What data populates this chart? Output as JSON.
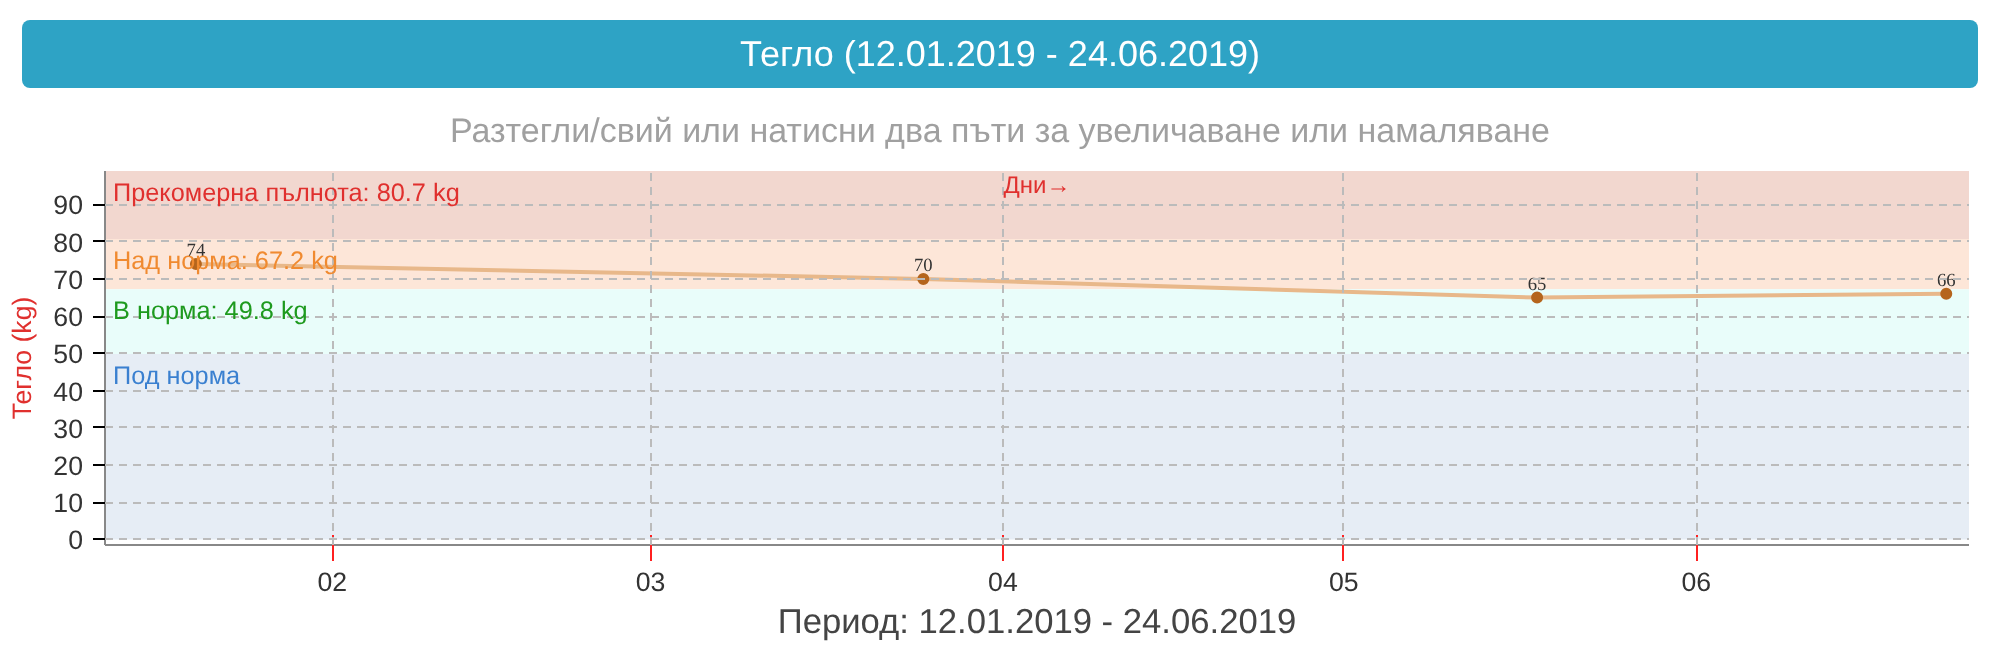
{
  "chart_data": {
    "type": "line",
    "title": "Тегло (12.01.2019 - 24.06.2019)",
    "subtitle": "Разтегли/свий или натисни два пъти за увеличаване или намаляване",
    "xlabel": "Период: 12.01.2019 - 24.06.2019",
    "ylabel": "Тегло (kg)",
    "annotations": [
      "Дни→"
    ],
    "x": [
      "2019-01-20",
      "2019-03-25",
      "2019-05-18",
      "2019-06-23"
    ],
    "series": [
      {
        "color": "#e8b88a",
        "values": [
          74,
          70,
          65,
          66
        ]
      }
    ],
    "xlim": [
      "2019-01-12",
      "2019-06-25"
    ],
    "xticks": [
      {
        "value": "2019-02-01",
        "label": "02"
      },
      {
        "value": "2019-03-01",
        "label": "03"
      },
      {
        "value": "2019-04-01",
        "label": "04"
      },
      {
        "value": "2019-05-01",
        "label": "05"
      },
      {
        "value": "2019-06-01",
        "label": "06"
      }
    ],
    "ylim": [
      -1.5,
      99
    ],
    "yticks": [
      0,
      10,
      20,
      30,
      40,
      50,
      60,
      70,
      80,
      90
    ],
    "bands": [
      {
        "axis": "y",
        "from": 80.7,
        "to": 99,
        "label": "Прекомерна пълнота: 80.7 kg",
        "color": "#f2d7cf"
      },
      {
        "axis": "y",
        "from": 67.2,
        "to": 80.7,
        "label": "Над норма: 67.2 kg",
        "color": "#fde6d8"
      },
      {
        "axis": "y",
        "from": 49.8,
        "to": 67.2,
        "label": "В норма: 49.8 kg",
        "color": "#e9fdfa"
      },
      {
        "axis": "y",
        "from": 0,
        "to": 49.8,
        "label": "Под норма",
        "color": "#e6edf5"
      }
    ],
    "grid": true,
    "marker": "circle",
    "line_style": "solid",
    "data_labels": true
  }
}
